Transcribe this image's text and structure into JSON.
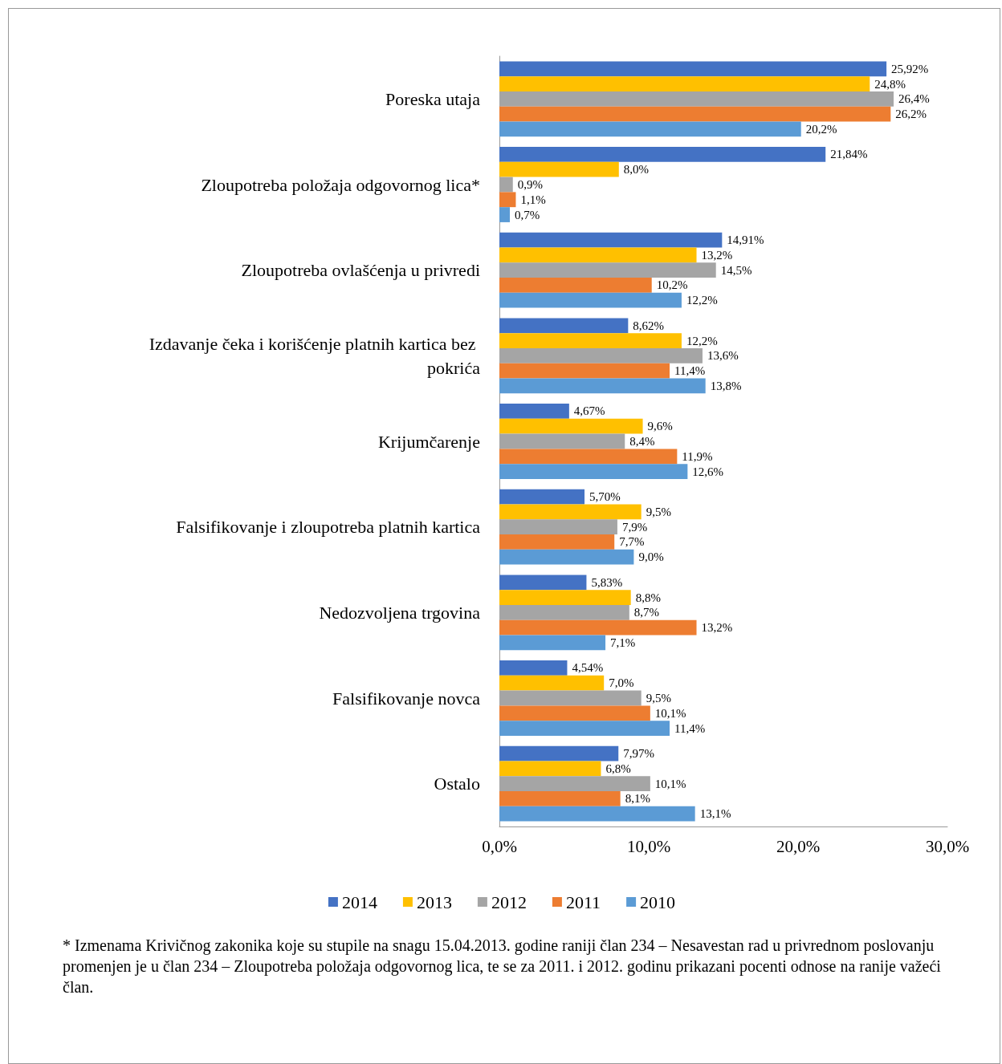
{
  "chart_data": {
    "type": "bar",
    "orientation": "horizontal",
    "categories": [
      "Poreska utaja",
      "Zloupotreba položaja odgovornog lica*",
      "Zloupotreba ovlašćenja u privredi",
      "Izdavanje čeka i korišćenje platnih kartica bez pokrića",
      "Krijumčarenje",
      "Falsifikovanje i zloupotreba platnih kartica",
      "Nedozvoljena trgovina",
      "Falsifikovanje novca",
      "Ostalo"
    ],
    "series": [
      {
        "name": "2014",
        "color": "#4472c4",
        "values": [
          25.92,
          21.84,
          14.91,
          8.62,
          4.67,
          5.7,
          5.83,
          4.54,
          7.97
        ],
        "value_labels": [
          "25,92%",
          "21,84%",
          "14,91%",
          "8,62%",
          "4,67%",
          "5,70%",
          "5,83%",
          "4,54%",
          "7,97%"
        ]
      },
      {
        "name": "2013",
        "color": "#ffc000",
        "values": [
          24.8,
          8.0,
          13.2,
          12.2,
          9.6,
          9.5,
          8.8,
          7.0,
          6.8
        ],
        "value_labels": [
          "24,8%",
          "8,0%",
          "13,2%",
          "12,2%",
          "9,6%",
          "9,5%",
          "8,8%",
          "7,0%",
          "6,8%"
        ]
      },
      {
        "name": "2012",
        "color": "#a5a5a5",
        "values": [
          26.4,
          0.9,
          14.5,
          13.6,
          8.4,
          7.9,
          8.7,
          9.5,
          10.1
        ],
        "value_labels": [
          "26,4%",
          "0,9%",
          "14,5%",
          "13,6%",
          "8,4%",
          "7,9%",
          "8,7%",
          "9,5%",
          "10,1%"
        ]
      },
      {
        "name": "2011",
        "color": "#ed7d31",
        "values": [
          26.2,
          1.1,
          10.2,
          11.4,
          11.9,
          7.7,
          13.2,
          10.1,
          8.1
        ],
        "value_labels": [
          "26,2%",
          "1,1%",
          "10,2%",
          "11,4%",
          "11,9%",
          "7,7%",
          "13,2%",
          "10,1%",
          "8,1%"
        ]
      },
      {
        "name": "2010",
        "color": "#5b9bd5",
        "values": [
          20.2,
          0.7,
          12.2,
          13.8,
          12.6,
          9.0,
          7.1,
          11.4,
          13.1
        ],
        "value_labels": [
          "20,2%",
          "0,7%",
          "12,2%",
          "13,8%",
          "12,6%",
          "9,0%",
          "7,1%",
          "11,4%",
          "13,1%"
        ]
      }
    ],
    "xlim": [
      0,
      30
    ],
    "xticks": [
      {
        "value": 0,
        "label": "0,0%"
      },
      {
        "value": 10,
        "label": "10,0%"
      },
      {
        "value": 20,
        "label": "20,0%"
      },
      {
        "value": 30,
        "label": "30,0%"
      }
    ],
    "legend": "bottom",
    "annotations": [
      "* Izmenama Krivičnog zakonika koje su stupile na snagu 15.04.2013.  godine raniji član 234 –  Nesavestan rad u privrednom poslovanju promenjen  je u član 234 – Zloupotreba položaja  odgovornog lica, te se za 2011. i 2012. godinu prikazani pocenti odnose na ranije važeći član."
    ]
  }
}
